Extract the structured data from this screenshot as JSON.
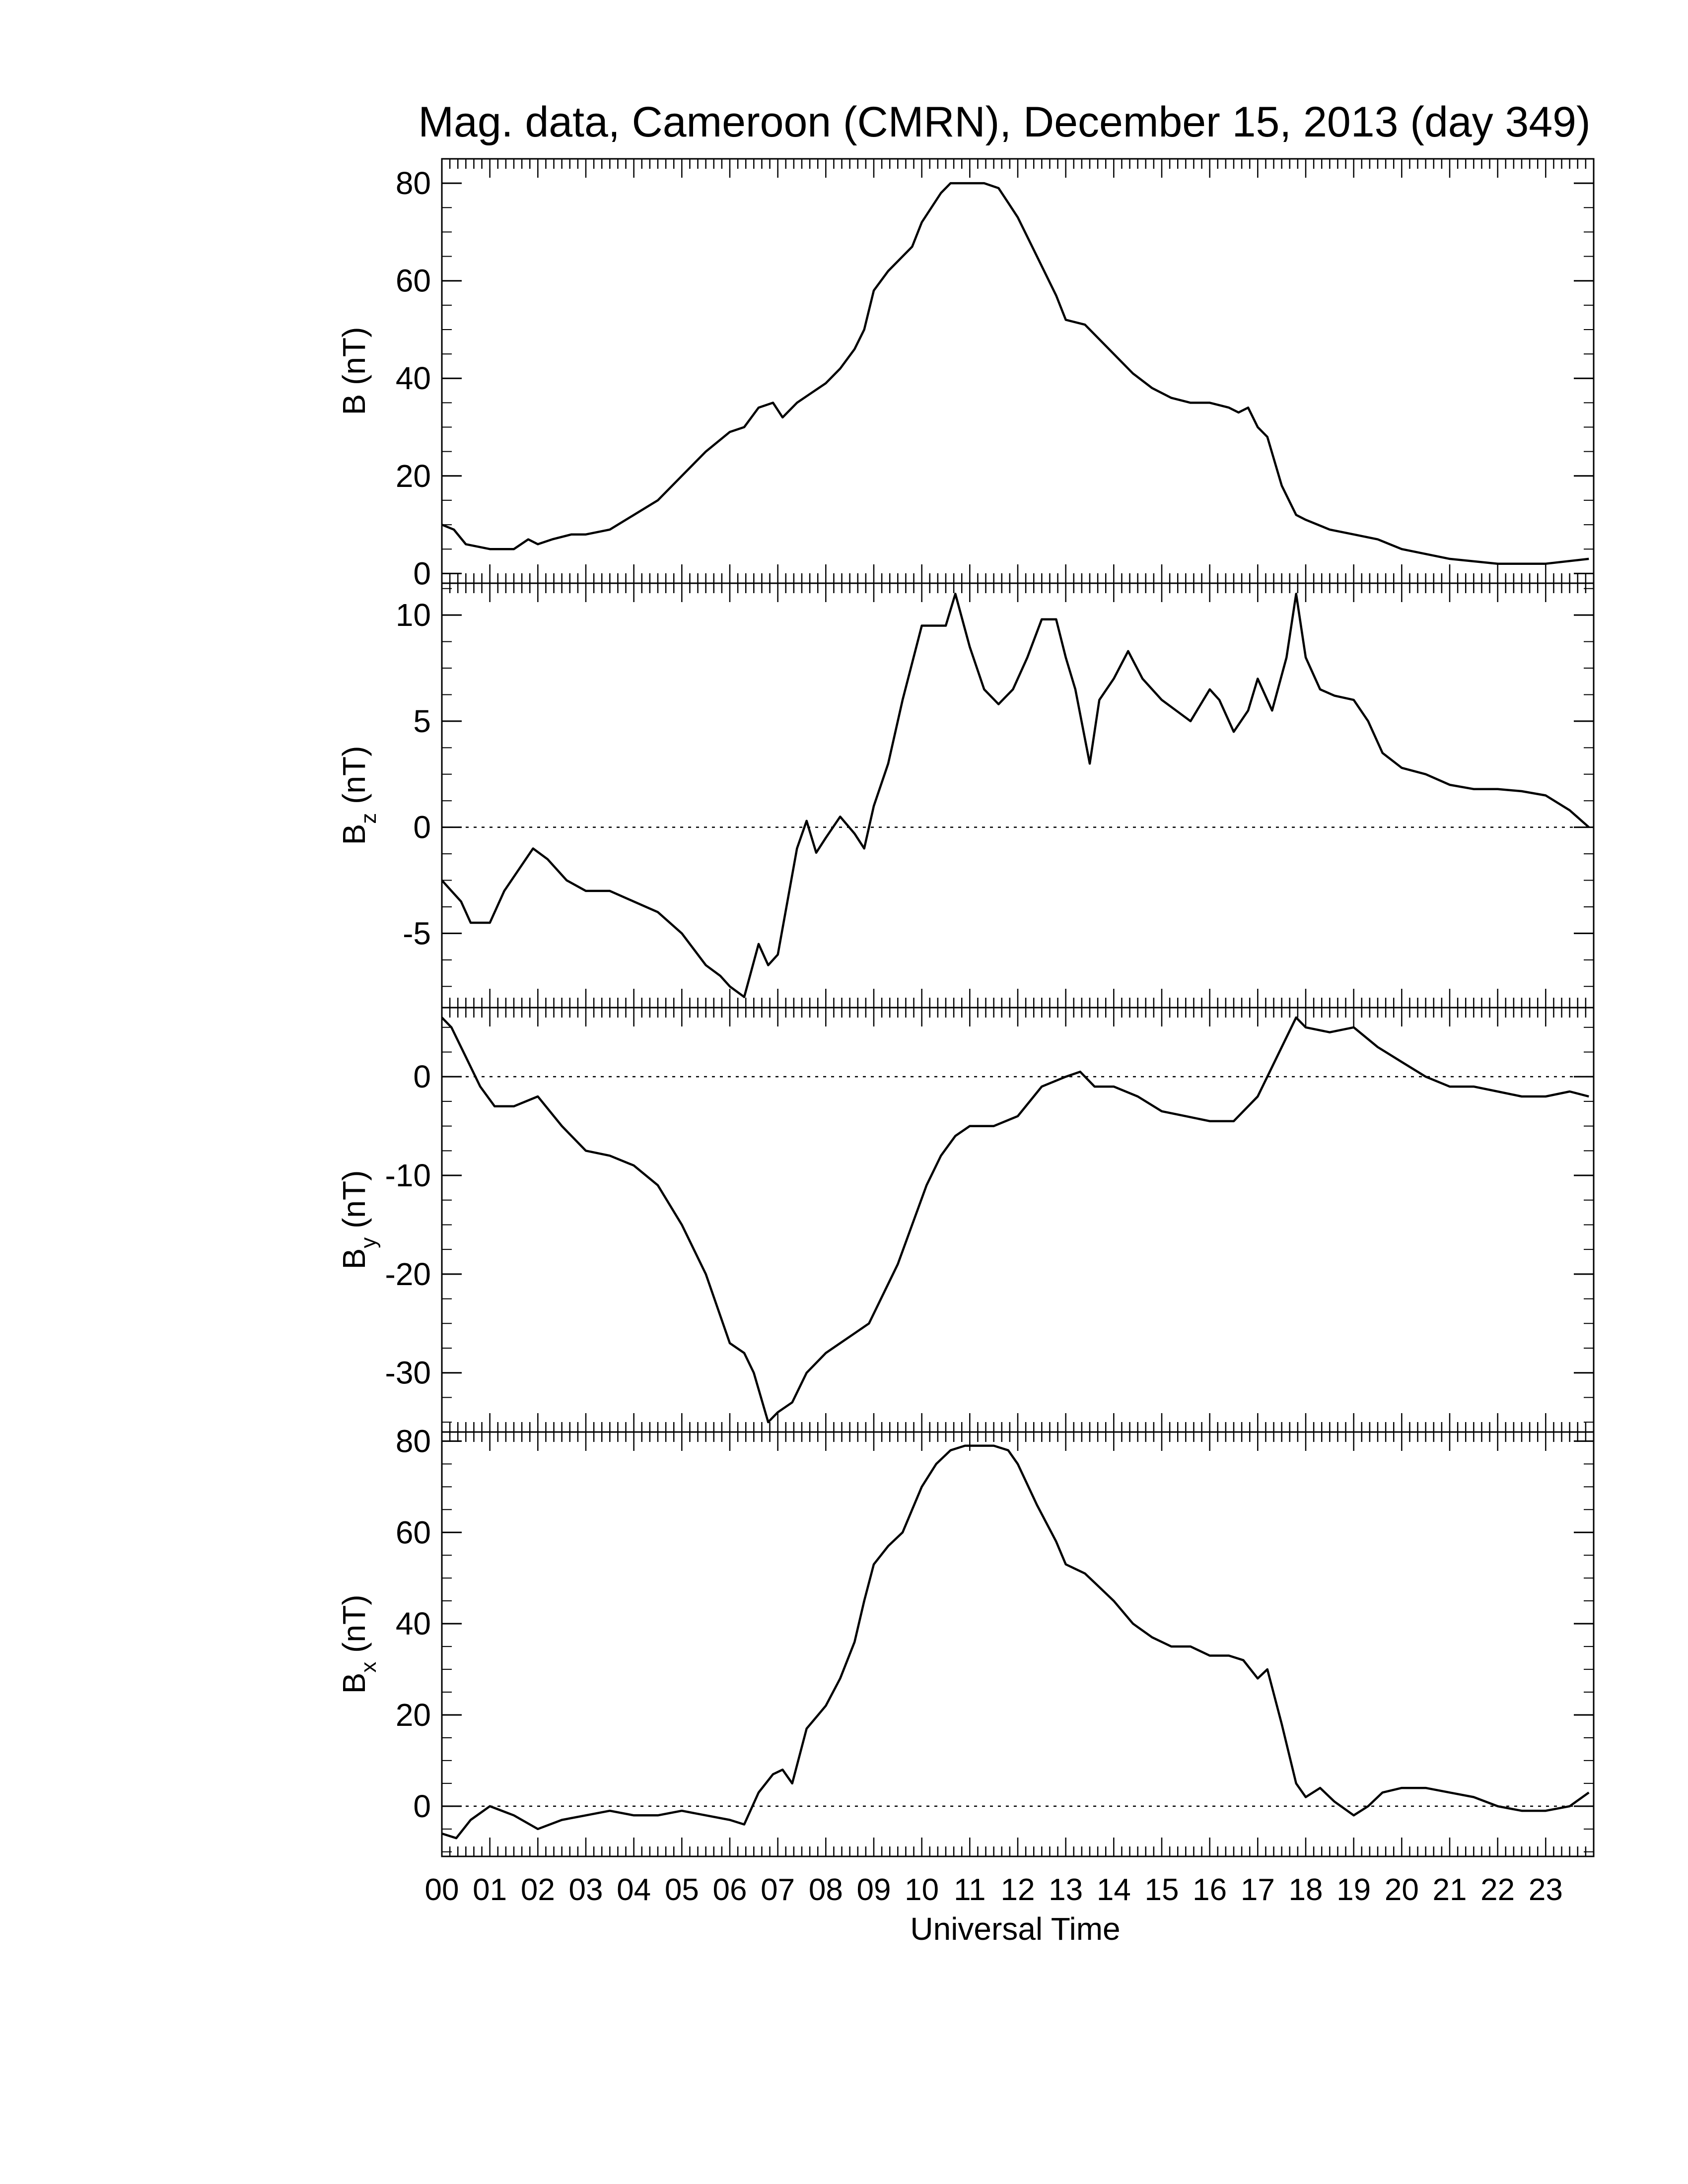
{
  "figure": {
    "title": "Mag. data, Cameroon (CMRN), December 15, 2013 (day 349)",
    "xlabel": "Universal Time",
    "xticks": [
      "00",
      "01",
      "02",
      "03",
      "04",
      "05",
      "06",
      "07",
      "08",
      "09",
      "10",
      "11",
      "12",
      "13",
      "14",
      "15",
      "16",
      "17",
      "18",
      "19",
      "20",
      "21",
      "22",
      "23"
    ]
  },
  "chart_data": [
    {
      "type": "line",
      "ylabel": "B (nT)",
      "ylabel_main": "B (nT)",
      "ylabel_sub": "",
      "ylim": [
        -2,
        85
      ],
      "yticks": [
        0,
        20,
        40,
        60,
        80
      ],
      "ytick_labels": [
        "0",
        "20",
        "40",
        "60",
        "80"
      ],
      "zero_line": false,
      "xlim": [
        0,
        24
      ],
      "x_unit": "hours UT",
      "x": [
        0,
        0.25,
        0.5,
        1,
        1.5,
        1.8,
        2,
        2.3,
        2.7,
        3,
        3.5,
        4,
        4.5,
        5,
        5.5,
        6,
        6.3,
        6.6,
        6.9,
        7.1,
        7.4,
        7.7,
        8,
        8.3,
        8.6,
        8.8,
        9,
        9.3,
        9.6,
        9.8,
        10,
        10.2,
        10.4,
        10.6,
        10.8,
        11,
        11.3,
        11.6,
        11.8,
        12,
        12.4,
        12.8,
        13,
        13.4,
        13.6,
        14,
        14.4,
        14.8,
        15.2,
        15.6,
        16,
        16.4,
        16.6,
        16.8,
        17,
        17.2,
        17.5,
        17.8,
        18,
        18.5,
        19,
        19.5,
        20,
        21,
        22,
        23,
        23.9
      ],
      "y": [
        10,
        9,
        6,
        5,
        5,
        7,
        6,
        7,
        8,
        8,
        9,
        12,
        15,
        20,
        25,
        29,
        30,
        34,
        35,
        32,
        35,
        37,
        39,
        42,
        46,
        50,
        58,
        62,
        65,
        67,
        72,
        75,
        78,
        80,
        80,
        80,
        80,
        79,
        76,
        73,
        65,
        57,
        52,
        51,
        49,
        45,
        41,
        38,
        36,
        35,
        35,
        34,
        33,
        34,
        30,
        28,
        18,
        12,
        11,
        9,
        8,
        7,
        5,
        3,
        2,
        2,
        3
      ]
    },
    {
      "type": "line",
      "ylabel": "Bz (nT)",
      "ylabel_main": "B",
      "ylabel_sub": "z",
      "ylabel_tail": " (nT)",
      "ylim": [
        -8.5,
        11.5
      ],
      "yticks": [
        -5,
        0,
        5,
        10
      ],
      "ytick_labels": [
        "-5",
        "0",
        "5",
        "10"
      ],
      "zero_line": true,
      "xlim": [
        0,
        24
      ],
      "x_unit": "hours UT",
      "x": [
        0,
        0.2,
        0.4,
        0.6,
        1,
        1.3,
        1.6,
        1.9,
        2.2,
        2.6,
        3,
        3.5,
        4,
        4.5,
        5,
        5.5,
        5.8,
        6,
        6.3,
        6.6,
        6.8,
        7,
        7.2,
        7.4,
        7.6,
        7.8,
        8,
        8.3,
        8.6,
        8.8,
        9,
        9.3,
        9.6,
        10,
        10.3,
        10.5,
        10.7,
        11,
        11.3,
        11.6,
        11.9,
        12.2,
        12.5,
        12.8,
        13,
        13.2,
        13.5,
        13.7,
        14,
        14.3,
        14.6,
        15,
        15.3,
        15.6,
        16,
        16.2,
        16.5,
        16.8,
        17,
        17.3,
        17.6,
        17.8,
        18,
        18.3,
        18.6,
        19,
        19.3,
        19.6,
        20,
        20.5,
        21,
        21.5,
        22,
        22.5,
        23,
        23.5,
        23.9
      ],
      "y": [
        -2.5,
        -3,
        -3.5,
        -4.5,
        -4.5,
        -3,
        -2,
        -1,
        -1.5,
        -2.5,
        -3,
        -3,
        -3.5,
        -4,
        -5,
        -6.5,
        -7,
        -7.5,
        -8,
        -5.5,
        -6.5,
        -6,
        -3.5,
        -1,
        0.3,
        -1.2,
        -0.5,
        0.5,
        -0.3,
        -1,
        1,
        3,
        6,
        9.5,
        9.5,
        9.5,
        11,
        8.5,
        6.5,
        5.8,
        6.5,
        8,
        9.8,
        9.8,
        8,
        6.5,
        3,
        6,
        7,
        8.3,
        7,
        6,
        5.5,
        5,
        6.5,
        6,
        4.5,
        5.5,
        7,
        5.5,
        8,
        11,
        8,
        6.5,
        6.2,
        6,
        5,
        3.5,
        2.8,
        2.5,
        2,
        1.8,
        1.8,
        1.7,
        1.5,
        0.8,
        0
      ]
    },
    {
      "type": "line",
      "ylabel": "By (nT)",
      "ylabel_main": "B",
      "ylabel_sub": "y",
      "ylabel_tail": " (nT)",
      "ylim": [
        -36,
        7
      ],
      "yticks": [
        -30,
        -20,
        -10,
        0
      ],
      "ytick_labels": [
        "-30",
        "-20",
        "-10",
        "0"
      ],
      "zero_line": true,
      "xlim": [
        0,
        24
      ],
      "x_unit": "hours UT",
      "x": [
        0,
        0.2,
        0.5,
        0.8,
        1.1,
        1.5,
        2,
        2.5,
        3,
        3.5,
        4,
        4.5,
        5,
        5.5,
        6,
        6.3,
        6.5,
        6.8,
        7,
        7.3,
        7.6,
        8,
        8.3,
        8.6,
        8.9,
        9.2,
        9.5,
        9.8,
        10.1,
        10.4,
        10.7,
        11,
        11.5,
        12,
        12.5,
        13,
        13.3,
        13.6,
        14,
        14.5,
        15,
        15.5,
        16,
        16.5,
        17,
        17.5,
        17.8,
        18,
        18.5,
        19,
        19.5,
        20,
        20.5,
        21,
        21.5,
        22,
        22.5,
        23,
        23.5,
        23.9
      ],
      "y": [
        6,
        5,
        2,
        -1,
        -3,
        -3,
        -2,
        -5,
        -7.5,
        -8,
        -9,
        -11,
        -15,
        -20,
        -27,
        -28,
        -30,
        -35,
        -34,
        -33,
        -30,
        -28,
        -27,
        -26,
        -25,
        -22,
        -19,
        -15,
        -11,
        -8,
        -6,
        -5,
        -5,
        -4,
        -1,
        0,
        0.5,
        -1,
        -1,
        -2,
        -3.5,
        -4,
        -4.5,
        -4.5,
        -2,
        3,
        6,
        5,
        4.5,
        5,
        3,
        1.5,
        0,
        -1,
        -1,
        -1.5,
        -2,
        -2,
        -1.5,
        -2
      ]
    },
    {
      "type": "line",
      "ylabel": "Bx (nT)",
      "ylabel_main": "B",
      "ylabel_sub": "x",
      "ylabel_tail": " (nT)",
      "ylim": [
        -11,
        82
      ],
      "yticks": [
        0,
        20,
        40,
        60,
        80
      ],
      "ytick_labels": [
        "0",
        "20",
        "40",
        "60",
        "80"
      ],
      "zero_line": true,
      "xlim": [
        0,
        24
      ],
      "x_unit": "hours UT",
      "x": [
        0,
        0.3,
        0.6,
        1,
        1.5,
        2,
        2.5,
        3,
        3.5,
        4,
        4.5,
        5,
        5.5,
        6,
        6.3,
        6.6,
        6.9,
        7.1,
        7.3,
        7.6,
        8,
        8.3,
        8.6,
        8.8,
        9,
        9.3,
        9.6,
        9.8,
        10,
        10.3,
        10.6,
        10.9,
        11.2,
        11.5,
        11.8,
        12,
        12.4,
        12.8,
        13,
        13.4,
        13.6,
        14,
        14.4,
        14.8,
        15.2,
        15.6,
        16,
        16.4,
        16.7,
        17,
        17.2,
        17.5,
        17.8,
        18,
        18.3,
        18.6,
        19,
        19.3,
        19.6,
        20,
        20.5,
        21,
        21.5,
        22,
        22.5,
        23,
        23.5,
        23.9
      ],
      "y": [
        -6,
        -7,
        -3,
        0,
        -2,
        -5,
        -3,
        -2,
        -1,
        -2,
        -2,
        -1,
        -2,
        -3,
        -4,
        3,
        7,
        8,
        5,
        17,
        22,
        28,
        36,
        45,
        53,
        57,
        60,
        65,
        70,
        75,
        78,
        79,
        79,
        79,
        78,
        75,
        66,
        58,
        53,
        51,
        49,
        45,
        40,
        37,
        35,
        35,
        33,
        33,
        32,
        28,
        30,
        18,
        5,
        2,
        4,
        1,
        -2,
        0,
        3,
        4,
        4,
        3,
        2,
        0,
        -1,
        -1,
        0,
        3
      ]
    }
  ]
}
